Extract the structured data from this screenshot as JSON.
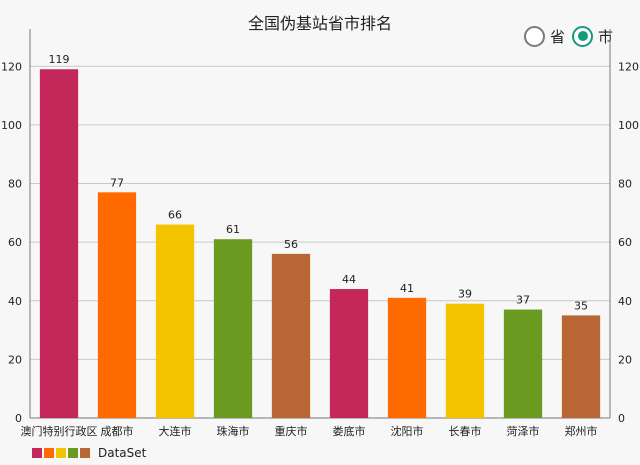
{
  "header": {
    "title": "全国伪基站省市排名",
    "radio": [
      {
        "label": "省",
        "checked": false
      },
      {
        "label": "市",
        "checked": true
      }
    ]
  },
  "colors": {
    "accent": "#139b7a",
    "palette": [
      "#c4285a",
      "#ff6a00",
      "#f5c400",
      "#6a9a1f",
      "#b86633"
    ]
  },
  "chart_data": {
    "type": "bar",
    "title": "全国伪基站省市排名",
    "categories": [
      "澳门特别行政区",
      "成都市",
      "大连市",
      "珠海市",
      "重庆市",
      "娄底市",
      "沈阳市",
      "长春市",
      "菏泽市",
      "郑州市"
    ],
    "series": [
      {
        "name": "DataSet",
        "values": [
          119,
          77,
          66,
          61,
          56,
          44,
          41,
          39,
          37,
          35
        ]
      }
    ],
    "ylim": [
      0,
      130
    ],
    "yticks": [
      0,
      20,
      40,
      60,
      80,
      100,
      120
    ],
    "legend": "bottom-left",
    "grid": true
  }
}
